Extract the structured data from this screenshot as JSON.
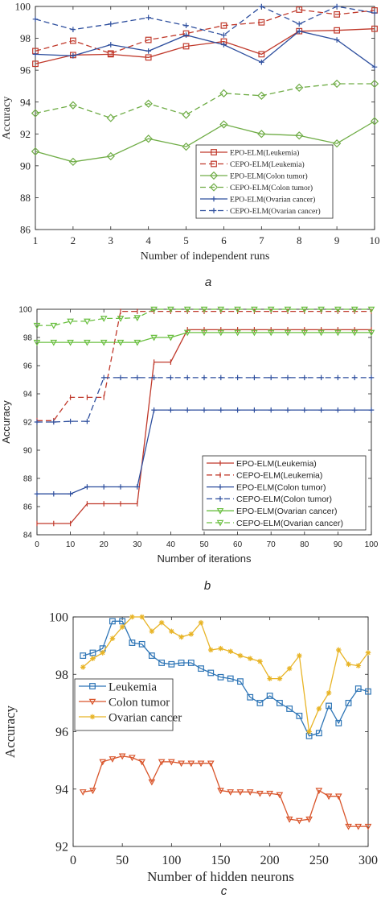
{
  "chart_data": [
    {
      "type": "line",
      "caption": "a",
      "xlabel": "Number of independent runs",
      "ylabel": "Accuracy",
      "xlim": [
        1,
        10
      ],
      "ylim": [
        86,
        100
      ],
      "xticks": [
        1,
        2,
        3,
        4,
        5,
        6,
        7,
        8,
        9,
        10
      ],
      "yticks": [
        86,
        88,
        90,
        92,
        94,
        96,
        98,
        100
      ],
      "grid": false,
      "legend_position": "bottom-right",
      "series": [
        {
          "name": "EPO-ELM(Leukemia)",
          "color": "#c0392b",
          "dash": "solid",
          "marker": "square",
          "x": [
            1,
            2,
            3,
            4,
            5,
            6,
            7,
            8,
            9,
            10
          ],
          "y": [
            96.4,
            96.95,
            97.0,
            96.8,
            97.5,
            97.8,
            97.0,
            98.45,
            98.5,
            98.6
          ]
        },
        {
          "name": "CEPO-ELM(Leukemia)",
          "color": "#c0392b",
          "dash": "dashed",
          "marker": "square",
          "x": [
            1,
            2,
            3,
            4,
            5,
            6,
            7,
            8,
            9,
            10
          ],
          "y": [
            97.2,
            97.85,
            97.05,
            97.9,
            98.3,
            98.8,
            99.0,
            99.8,
            99.5,
            99.75
          ]
        },
        {
          "name": "EPO-ELM(Colon tumor)",
          "color": "#70ad47",
          "dash": "solid",
          "marker": "diamond",
          "x": [
            1,
            2,
            3,
            4,
            5,
            6,
            7,
            8,
            9,
            10
          ],
          "y": [
            90.9,
            90.25,
            90.6,
            91.7,
            91.2,
            92.6,
            92.0,
            91.9,
            91.4,
            92.8
          ]
        },
        {
          "name": "CEPO-ELM(Colon tumor)",
          "color": "#70ad47",
          "dash": "dashed",
          "marker": "diamond",
          "x": [
            1,
            2,
            3,
            4,
            5,
            6,
            7,
            8,
            9,
            10
          ],
          "y": [
            93.3,
            93.8,
            93.0,
            93.9,
            93.2,
            94.55,
            94.4,
            94.9,
            95.15,
            95.15
          ]
        },
        {
          "name": "EPO-ELM(Ovarian cancer)",
          "color": "#2e4f9e",
          "dash": "solid",
          "marker": "plus",
          "x": [
            1,
            2,
            3,
            4,
            5,
            6,
            7,
            8,
            9,
            10
          ],
          "y": [
            97.0,
            96.9,
            97.6,
            97.2,
            98.2,
            97.6,
            96.5,
            98.45,
            97.9,
            96.2
          ]
        },
        {
          "name": "CEPO-ELM(Ovarian cancer)",
          "color": "#2e4f9e",
          "dash": "dashed",
          "marker": "plus",
          "x": [
            1,
            2,
            3,
            4,
            5,
            6,
            7,
            8,
            9,
            10
          ],
          "y": [
            99.2,
            98.55,
            98.9,
            99.3,
            98.8,
            98.2,
            100.0,
            98.9,
            100.0,
            99.6
          ]
        }
      ]
    },
    {
      "type": "line",
      "caption": "b",
      "xlabel": "Number of iterations",
      "ylabel": "Accuracy",
      "xlim": [
        0,
        100
      ],
      "ylim": [
        84,
        100
      ],
      "xticks": [
        0,
        10,
        20,
        30,
        40,
        50,
        60,
        70,
        80,
        90,
        100
      ],
      "yticks": [
        84,
        86,
        88,
        90,
        92,
        94,
        96,
        98,
        100
      ],
      "grid": false,
      "legend_position": "bottom-right",
      "series": [
        {
          "name": "EPO-ELM(Leukemia)",
          "color": "#c0392b",
          "dash": "solid",
          "marker": "vline",
          "x": [
            0,
            5,
            10,
            15,
            20,
            25,
            30,
            35,
            40,
            45,
            50,
            55,
            60,
            65,
            70,
            75,
            80,
            85,
            90,
            95,
            100
          ],
          "y": [
            84.8,
            84.8,
            84.8,
            86.2,
            86.2,
            86.2,
            86.2,
            96.25,
            96.25,
            98.55,
            98.55,
            98.55,
            98.55,
            98.55,
            98.55,
            98.55,
            98.55,
            98.55,
            98.55,
            98.55,
            98.55
          ]
        },
        {
          "name": "CEPO-ELM(Leukemia)",
          "color": "#c0392b",
          "dash": "dashed",
          "marker": "vline",
          "x": [
            0,
            5,
            10,
            15,
            20,
            25,
            30,
            35,
            40,
            45,
            50,
            55,
            60,
            65,
            70,
            75,
            80,
            85,
            90,
            95,
            100
          ],
          "y": [
            92.1,
            92.1,
            93.75,
            93.75,
            93.75,
            99.85,
            99.85,
            99.85,
            99.85,
            99.85,
            99.85,
            99.85,
            99.85,
            99.85,
            99.85,
            99.85,
            99.85,
            99.85,
            99.85,
            99.85,
            99.85
          ]
        },
        {
          "name": "EPO-ELM(Colon tumor)",
          "color": "#2e4f9e",
          "dash": "solid",
          "marker": "plus",
          "x": [
            0,
            5,
            10,
            15,
            20,
            25,
            30,
            35,
            40,
            45,
            50,
            55,
            60,
            65,
            70,
            75,
            80,
            85,
            90,
            95,
            100
          ],
          "y": [
            86.9,
            86.9,
            86.9,
            87.4,
            87.4,
            87.4,
            87.4,
            92.85,
            92.85,
            92.85,
            92.85,
            92.85,
            92.85,
            92.85,
            92.85,
            92.85,
            92.85,
            92.85,
            92.85,
            92.85,
            92.85
          ]
        },
        {
          "name": "CEPO-ELM(Colon tumor)",
          "color": "#2e4f9e",
          "dash": "dashed",
          "marker": "plus",
          "x": [
            0,
            5,
            10,
            15,
            20,
            25,
            30,
            35,
            40,
            45,
            50,
            55,
            60,
            65,
            70,
            75,
            80,
            85,
            90,
            95,
            100
          ],
          "y": [
            92.0,
            92.0,
            92.05,
            92.05,
            95.15,
            95.15,
            95.15,
            95.15,
            95.15,
            95.15,
            95.15,
            95.15,
            95.15,
            95.15,
            95.15,
            95.15,
            95.15,
            95.15,
            95.15,
            95.15,
            95.15
          ]
        },
        {
          "name": "EPO-ELM(Ovarian cancer)",
          "color": "#6abf40",
          "dash": "solid",
          "marker": "triangle-down",
          "x": [
            0,
            5,
            10,
            15,
            20,
            25,
            30,
            35,
            40,
            45,
            50,
            55,
            60,
            65,
            70,
            75,
            80,
            85,
            90,
            95,
            100
          ],
          "y": [
            97.65,
            97.65,
            97.65,
            97.65,
            97.65,
            97.65,
            97.65,
            98.0,
            98.0,
            98.35,
            98.35,
            98.35,
            98.35,
            98.35,
            98.35,
            98.35,
            98.35,
            98.35,
            98.35,
            98.35,
            98.35
          ]
        },
        {
          "name": "CEPO-ELM(Ovarian cancer)",
          "color": "#6abf40",
          "dash": "dashed",
          "marker": "triangle-down",
          "x": [
            0,
            5,
            10,
            15,
            20,
            25,
            30,
            35,
            40,
            45,
            50,
            55,
            60,
            65,
            70,
            75,
            80,
            85,
            90,
            95,
            100
          ],
          "y": [
            98.85,
            98.85,
            99.15,
            99.15,
            99.35,
            99.35,
            99.4,
            100.0,
            100.0,
            100.0,
            100.0,
            100.0,
            100.0,
            100.0,
            100.0,
            100.0,
            100.0,
            100.0,
            100.0,
            100.0,
            100.0
          ]
        }
      ]
    },
    {
      "type": "line",
      "caption": "c",
      "xlabel": "Number of hidden neurons",
      "ylabel": "Accuracy",
      "xlim": [
        0,
        300
      ],
      "ylim": [
        92,
        100
      ],
      "xticks": [
        0,
        50,
        100,
        150,
        200,
        250,
        300
      ],
      "yticks": [
        92,
        94,
        96,
        98,
        100
      ],
      "grid": false,
      "legend_position": "middle-left",
      "series": [
        {
          "name": "Leukemia",
          "color": "#2e75b6",
          "dash": "solid",
          "marker": "square",
          "x": [
            10,
            20,
            30,
            40,
            50,
            60,
            70,
            80,
            90,
            100,
            110,
            120,
            130,
            140,
            150,
            160,
            170,
            180,
            190,
            200,
            210,
            220,
            230,
            240,
            250,
            260,
            270,
            280,
            290,
            300
          ],
          "y": [
            98.65,
            98.75,
            98.9,
            99.85,
            99.85,
            99.1,
            99.05,
            98.65,
            98.4,
            98.35,
            98.4,
            98.4,
            98.2,
            98.05,
            97.9,
            97.85,
            97.75,
            97.2,
            97.0,
            97.25,
            97.0,
            96.8,
            96.55,
            95.85,
            95.95,
            96.9,
            96.3,
            97.0,
            97.5,
            97.4
          ]
        },
        {
          "name": "Colon tumor",
          "color": "#d9552b",
          "dash": "solid",
          "marker": "triangle-down",
          "x": [
            10,
            20,
            30,
            40,
            50,
            60,
            70,
            80,
            90,
            100,
            110,
            120,
            130,
            140,
            150,
            160,
            170,
            180,
            190,
            200,
            210,
            220,
            230,
            240,
            250,
            260,
            270,
            280,
            290,
            300
          ],
          "y": [
            93.9,
            93.95,
            94.95,
            95.05,
            95.15,
            95.1,
            94.95,
            94.25,
            94.95,
            94.95,
            94.9,
            94.9,
            94.9,
            94.9,
            93.95,
            93.9,
            93.9,
            93.9,
            93.85,
            93.85,
            93.8,
            92.95,
            92.9,
            92.95,
            93.95,
            93.75,
            93.75,
            92.7,
            92.7,
            92.7
          ]
        },
        {
          "name": "Ovarian cancer",
          "color": "#e8b426",
          "dash": "solid",
          "marker": "star",
          "x": [
            10,
            20,
            30,
            40,
            50,
            60,
            70,
            80,
            90,
            100,
            110,
            120,
            130,
            140,
            150,
            160,
            170,
            180,
            190,
            200,
            210,
            220,
            230,
            240,
            250,
            260,
            270,
            280,
            290,
            300
          ],
          "y": [
            98.25,
            98.55,
            98.75,
            99.25,
            99.65,
            100.0,
            100.0,
            99.5,
            99.8,
            99.5,
            99.3,
            99.4,
            99.8,
            98.85,
            98.9,
            98.8,
            98.65,
            98.55,
            98.45,
            97.85,
            97.85,
            98.2,
            98.65,
            96.0,
            96.8,
            97.35,
            98.85,
            98.35,
            98.3,
            98.75
          ]
        }
      ]
    }
  ]
}
